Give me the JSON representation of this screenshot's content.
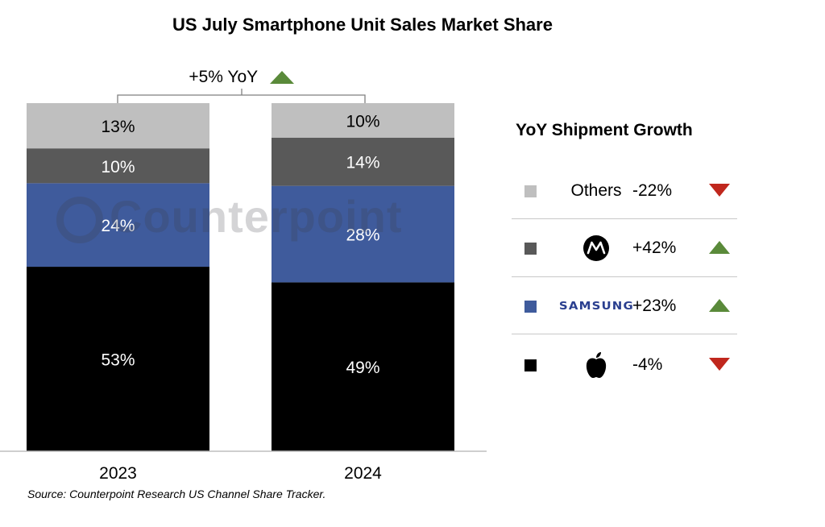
{
  "title": "US July Smartphone Unit Sales Market Share",
  "yoy_total": {
    "text": "+5% YoY",
    "direction": "up"
  },
  "watermark": "Counterpoint",
  "colors": {
    "Others": "#bfbfbf",
    "Motorola": "#595959",
    "Samsung": "#3f5b9c",
    "Apple": "#000000",
    "up": "#5a8a3a",
    "down": "#c0271d"
  },
  "chart_data": {
    "type": "bar",
    "stacked": true,
    "categories": [
      "2023",
      "2024"
    ],
    "series": [
      {
        "name": "Apple",
        "values": [
          53,
          49
        ]
      },
      {
        "name": "Samsung",
        "values": [
          24,
          28
        ]
      },
      {
        "name": "Motorola",
        "values": [
          10,
          14
        ]
      },
      {
        "name": "Others",
        "values": [
          13,
          10
        ]
      }
    ],
    "data_labels": [
      [
        "53%",
        "49%"
      ],
      [
        "24%",
        "28%"
      ],
      [
        "10%",
        "14%"
      ],
      [
        "13%",
        "10%"
      ]
    ],
    "ylim": [
      0,
      100
    ],
    "grid": false
  },
  "legend": {
    "title": "YoY Shipment Growth",
    "items": [
      {
        "series": "Others",
        "brand": "Others",
        "brand_icon": "text",
        "growth": "-22%",
        "direction": "down"
      },
      {
        "series": "Motorola",
        "brand": "",
        "brand_icon": "motorola-logo-icon",
        "growth": "+42%",
        "direction": "up"
      },
      {
        "series": "Samsung",
        "brand": "SAMSUNG",
        "brand_icon": "samsung-wordmark",
        "growth": "+23%",
        "direction": "up"
      },
      {
        "series": "Apple",
        "brand": "",
        "brand_icon": "apple-logo-icon",
        "growth": "-4%",
        "direction": "down"
      }
    ]
  },
  "source": "Source: Counterpoint Research US Channel Share Tracker."
}
